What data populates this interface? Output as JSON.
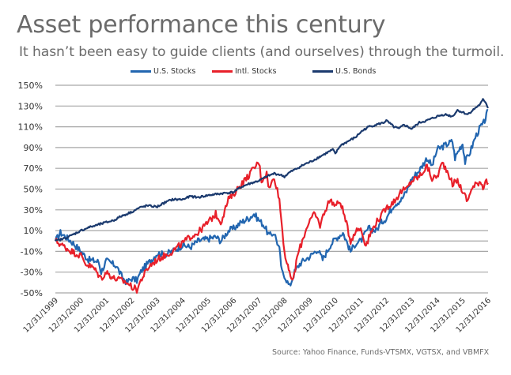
{
  "header": {
    "title": "Asset performance this century",
    "subtitle": "It hasn’t been easy to guide clients (and ourselves) through the turmoil."
  },
  "footer": {
    "source": "Source: Yahoo Finance, Funds-VTSMX, VGTSX, and VBMFX"
  },
  "chart_data": {
    "type": "line",
    "title": "Asset performance this century",
    "subtitle": "It hasn’t been easy to guide clients (and ourselves) through the turmoil.",
    "xlabel": "",
    "ylabel": "",
    "ylim": [
      -50,
      150
    ],
    "grid": true,
    "legend_position": "top-center",
    "y_ticks": [
      "150%",
      "130%",
      "110%",
      "90%",
      "70%",
      "50%",
      "30%",
      "10%",
      "-10%",
      "-30%",
      "-50%"
    ],
    "y_tick_values": [
      150,
      130,
      110,
      90,
      70,
      50,
      30,
      10,
      -10,
      -30,
      -50
    ],
    "x_ticks": [
      "12/31/1999",
      "12/31/2000",
      "12/31/2001",
      "12/31/2002",
      "12/31/2003",
      "12/31/2004",
      "12/31/2005",
      "12/31/2006",
      "12/31/2007",
      "12/31/2008",
      "12/31/2009",
      "12/31/2010",
      "12/31/2011",
      "12/31/2012",
      "12/31/2013",
      "12/31/2014",
      "12/31/2015",
      "12/31/2016"
    ],
    "x_unit": "years since 12/31/1999",
    "xlim": [
      0,
      17
    ],
    "series": [
      {
        "name": "U.S. Stocks",
        "color": "#2266b0",
        "points": [
          [
            0,
            0
          ],
          [
            0.2,
            8
          ],
          [
            0.5,
            2
          ],
          [
            0.7,
            -2
          ],
          [
            1.0,
            -10
          ],
          [
            1.3,
            -18
          ],
          [
            1.7,
            -20
          ],
          [
            1.8,
            -30
          ],
          [
            2.0,
            -19
          ],
          [
            2.4,
            -24
          ],
          [
            2.6,
            -34
          ],
          [
            2.8,
            -40
          ],
          [
            3.0,
            -36
          ],
          [
            3.2,
            -38
          ],
          [
            3.4,
            -28
          ],
          [
            3.7,
            -20
          ],
          [
            4.0,
            -12
          ],
          [
            4.3,
            -13
          ],
          [
            4.6,
            -10
          ],
          [
            5.0,
            -4
          ],
          [
            5.3,
            -6
          ],
          [
            5.6,
            0
          ],
          [
            6.0,
            2
          ],
          [
            6.3,
            4
          ],
          [
            6.5,
            0
          ],
          [
            6.8,
            10
          ],
          [
            7.0,
            12
          ],
          [
            7.3,
            18
          ],
          [
            7.6,
            22
          ],
          [
            7.8,
            26
          ],
          [
            8.0,
            20
          ],
          [
            8.2,
            15
          ],
          [
            8.4,
            5
          ],
          [
            8.6,
            8
          ],
          [
            8.8,
            -8
          ],
          [
            8.9,
            -30
          ],
          [
            9.0,
            -33
          ],
          [
            9.2,
            -44
          ],
          [
            9.4,
            -30
          ],
          [
            9.6,
            -22
          ],
          [
            9.8,
            -18
          ],
          [
            10.0,
            -15
          ],
          [
            10.3,
            -8
          ],
          [
            10.5,
            -18
          ],
          [
            10.8,
            -4
          ],
          [
            11.0,
            2
          ],
          [
            11.3,
            8
          ],
          [
            11.6,
            -10
          ],
          [
            11.8,
            -2
          ],
          [
            12.0,
            0
          ],
          [
            12.3,
            12
          ],
          [
            12.6,
            10
          ],
          [
            12.8,
            18
          ],
          [
            13.0,
            22
          ],
          [
            13.3,
            35
          ],
          [
            13.6,
            40
          ],
          [
            13.8,
            48
          ],
          [
            14.0,
            60
          ],
          [
            14.3,
            68
          ],
          [
            14.6,
            80
          ],
          [
            14.8,
            72
          ],
          [
            15.0,
            88
          ],
          [
            15.3,
            92
          ],
          [
            15.6,
            96
          ],
          [
            15.7,
            80
          ],
          [
            15.9,
            90
          ],
          [
            16.0,
            94
          ],
          [
            16.1,
            76
          ],
          [
            16.3,
            86
          ],
          [
            16.5,
            100
          ],
          [
            16.7,
            110
          ],
          [
            16.8,
            112
          ],
          [
            16.9,
            118
          ],
          [
            17.0,
            126
          ]
        ]
      },
      {
        "name": "Intl. Stocks",
        "color": "#e8202a",
        "points": [
          [
            0,
            0
          ],
          [
            0.2,
            -3
          ],
          [
            0.5,
            -8
          ],
          [
            0.8,
            -12
          ],
          [
            1.0,
            -14
          ],
          [
            1.2,
            -22
          ],
          [
            1.5,
            -26
          ],
          [
            1.8,
            -36
          ],
          [
            2.0,
            -30
          ],
          [
            2.3,
            -36
          ],
          [
            2.6,
            -38
          ],
          [
            2.8,
            -40
          ],
          [
            3.0,
            -44
          ],
          [
            3.2,
            -47
          ],
          [
            3.4,
            -36
          ],
          [
            3.7,
            -24
          ],
          [
            4.0,
            -18
          ],
          [
            4.3,
            -14
          ],
          [
            4.6,
            -10
          ],
          [
            5.0,
            -2
          ],
          [
            5.3,
            4
          ],
          [
            5.6,
            8
          ],
          [
            6.0,
            18
          ],
          [
            6.3,
            26
          ],
          [
            6.5,
            18
          ],
          [
            6.8,
            40
          ],
          [
            7.0,
            45
          ],
          [
            7.3,
            55
          ],
          [
            7.5,
            60
          ],
          [
            7.8,
            70
          ],
          [
            8.0,
            76
          ],
          [
            8.1,
            58
          ],
          [
            8.3,
            65
          ],
          [
            8.4,
            50
          ],
          [
            8.6,
            62
          ],
          [
            8.8,
            40
          ],
          [
            9.0,
            -10
          ],
          [
            9.1,
            -22
          ],
          [
            9.2,
            -32
          ],
          [
            9.35,
            -38
          ],
          [
            9.5,
            -15
          ],
          [
            9.7,
            0
          ],
          [
            9.9,
            15
          ],
          [
            10.0,
            20
          ],
          [
            10.2,
            26
          ],
          [
            10.4,
            15
          ],
          [
            10.6,
            30
          ],
          [
            10.8,
            40
          ],
          [
            11.0,
            34
          ],
          [
            11.2,
            38
          ],
          [
            11.4,
            20
          ],
          [
            11.6,
            0
          ],
          [
            11.8,
            10
          ],
          [
            12.0,
            12
          ],
          [
            12.2,
            -4
          ],
          [
            12.4,
            8
          ],
          [
            12.6,
            18
          ],
          [
            12.8,
            24
          ],
          [
            13.0,
            32
          ],
          [
            13.3,
            38
          ],
          [
            13.6,
            48
          ],
          [
            13.8,
            50
          ],
          [
            14.0,
            58
          ],
          [
            14.3,
            62
          ],
          [
            14.6,
            72
          ],
          [
            14.8,
            60
          ],
          [
            15.0,
            62
          ],
          [
            15.2,
            75
          ],
          [
            15.4,
            68
          ],
          [
            15.6,
            55
          ],
          [
            15.8,
            58
          ],
          [
            16.0,
            48
          ],
          [
            16.2,
            38
          ],
          [
            16.3,
            48
          ],
          [
            16.5,
            54
          ],
          [
            16.7,
            58
          ],
          [
            16.8,
            52
          ],
          [
            16.9,
            58
          ],
          [
            17.0,
            56
          ]
        ]
      },
      {
        "name": "U.S. Bonds",
        "color": "#1b3a6e",
        "points": [
          [
            0,
            0
          ],
          [
            0.3,
            2
          ],
          [
            0.6,
            5
          ],
          [
            1.0,
            10
          ],
          [
            1.3,
            13
          ],
          [
            1.6,
            15
          ],
          [
            2.0,
            18
          ],
          [
            2.3,
            20
          ],
          [
            2.6,
            24
          ],
          [
            3.0,
            28
          ],
          [
            3.3,
            32
          ],
          [
            3.6,
            34
          ],
          [
            4.0,
            33
          ],
          [
            4.3,
            37
          ],
          [
            4.6,
            40
          ],
          [
            5.0,
            40
          ],
          [
            5.3,
            43
          ],
          [
            5.6,
            42
          ],
          [
            6.0,
            44
          ],
          [
            6.3,
            45
          ],
          [
            6.6,
            46
          ],
          [
            7.0,
            47
          ],
          [
            7.3,
            52
          ],
          [
            7.6,
            55
          ],
          [
            8.0,
            58
          ],
          [
            8.3,
            62
          ],
          [
            8.6,
            65
          ],
          [
            8.8,
            64
          ],
          [
            9.0,
            62
          ],
          [
            9.2,
            66
          ],
          [
            9.5,
            70
          ],
          [
            9.8,
            74
          ],
          [
            10.0,
            76
          ],
          [
            10.3,
            80
          ],
          [
            10.6,
            84
          ],
          [
            10.9,
            88
          ],
          [
            11.0,
            84
          ],
          [
            11.2,
            92
          ],
          [
            11.5,
            96
          ],
          [
            11.8,
            100
          ],
          [
            12.0,
            105
          ],
          [
            12.3,
            110
          ],
          [
            12.6,
            112
          ],
          [
            12.9,
            114
          ],
          [
            13.0,
            116
          ],
          [
            13.3,
            110
          ],
          [
            13.5,
            108
          ],
          [
            13.7,
            112
          ],
          [
            14.0,
            108
          ],
          [
            14.3,
            114
          ],
          [
            14.6,
            116
          ],
          [
            15.0,
            120
          ],
          [
            15.3,
            122
          ],
          [
            15.6,
            120
          ],
          [
            15.8,
            126
          ],
          [
            16.0,
            124
          ],
          [
            16.2,
            122
          ],
          [
            16.5,
            128
          ],
          [
            16.7,
            132
          ],
          [
            16.8,
            136
          ],
          [
            16.9,
            134
          ],
          [
            17.0,
            128
          ]
        ]
      }
    ]
  }
}
